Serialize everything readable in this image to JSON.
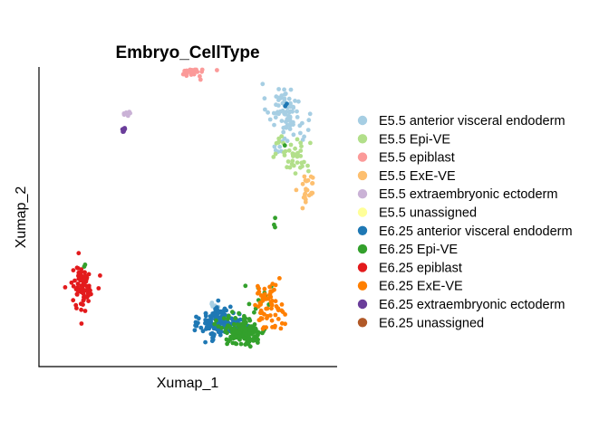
{
  "chart_data": {
    "type": "scatter",
    "title": "Embryo_CellType",
    "xlabel": "Xumap_1",
    "ylabel": "Xumap_2",
    "xlim": [
      0,
      100
    ],
    "ylim": [
      0,
      100
    ],
    "grid": false,
    "ticks": false,
    "legend_position": "right",
    "series": [
      {
        "name": "E5.5 anterior visceral endoderm",
        "color": "#a6cee3",
        "clusters": [
          {
            "cx": 84,
            "cy": 90,
            "sx": 3,
            "sy": 4,
            "n": 55
          },
          {
            "cx": 88,
            "cy": 82,
            "sx": 3,
            "sy": 3,
            "n": 25
          },
          {
            "cx": 82,
            "cy": 75,
            "sx": 1.5,
            "sy": 2,
            "n": 6
          },
          {
            "cx": 60,
            "cy": 18,
            "sx": 1.5,
            "sy": 1,
            "n": 6
          }
        ]
      },
      {
        "name": "E5.5 Epi-VE",
        "color": "#b2df8a",
        "clusters": [
          {
            "cx": 88,
            "cy": 72,
            "sx": 3,
            "sy": 3,
            "n": 38
          },
          {
            "cx": 83,
            "cy": 78,
            "sx": 1.5,
            "sy": 1.5,
            "n": 6
          }
        ]
      },
      {
        "name": "E5.5 epiblast",
        "color": "#fb9a99",
        "clusters": [
          {
            "cx": 52,
            "cy": 102,
            "sx": 2.5,
            "sy": 1,
            "n": 24
          }
        ]
      },
      {
        "name": "E5.5 ExE-VE",
        "color": "#fdbf6f",
        "clusters": [
          {
            "cx": 93,
            "cy": 61,
            "sx": 1.4,
            "sy": 3,
            "n": 24
          }
        ]
      },
      {
        "name": "E5.5 extraembryonic ectoderm",
        "color": "#cab2d6",
        "clusters": [
          {
            "cx": 27,
            "cy": 87,
            "sx": 0.8,
            "sy": 0.6,
            "n": 8
          }
        ]
      },
      {
        "name": "E5.5 unassigned",
        "color": "#ffff99",
        "clusters": []
      },
      {
        "name": "E6.25 anterior visceral endoderm",
        "color": "#1f78b4",
        "clusters": [
          {
            "cx": 61,
            "cy": 12,
            "sx": 3.5,
            "sy": 3,
            "n": 130
          },
          {
            "cx": 69,
            "cy": 11,
            "sx": 2,
            "sy": 2,
            "n": 15
          },
          {
            "cx": 85,
            "cy": 90,
            "sx": 0.5,
            "sy": 0.5,
            "n": 2
          }
        ]
      },
      {
        "name": "E6.25 Epi-VE",
        "color": "#33a02c",
        "clusters": [
          {
            "cx": 70,
            "cy": 9,
            "sx": 4,
            "sy": 2.5,
            "n": 150
          },
          {
            "cx": 76,
            "cy": 20,
            "sx": 3,
            "sy": 3,
            "n": 12
          },
          {
            "cx": 82,
            "cy": 48,
            "sx": 1,
            "sy": 1.5,
            "n": 3
          },
          {
            "cx": 84,
            "cy": 76,
            "sx": 0.3,
            "sy": 0.3,
            "n": 1
          },
          {
            "cx": 11,
            "cy": 33,
            "sx": 0.5,
            "sy": 0.5,
            "n": 2
          }
        ]
      },
      {
        "name": "E6.25 epiblast",
        "color": "#e31a1c",
        "clusters": [
          {
            "cx": 11,
            "cy": 25,
            "sx": 2.2,
            "sy": 4,
            "n": 75
          }
        ]
      },
      {
        "name": "E6.25 ExE-VE",
        "color": "#ff7f00",
        "clusters": [
          {
            "cx": 79,
            "cy": 18,
            "sx": 2.8,
            "sy": 4,
            "n": 65
          }
        ]
      },
      {
        "name": "E6.25 extraembryonic ectoderm",
        "color": "#6a3d9a",
        "clusters": [
          {
            "cx": 26,
            "cy": 81,
            "sx": 0.6,
            "sy": 0.6,
            "n": 10
          }
        ]
      },
      {
        "name": "E6.25 unassigned",
        "color": "#b15928",
        "clusters": []
      }
    ]
  }
}
